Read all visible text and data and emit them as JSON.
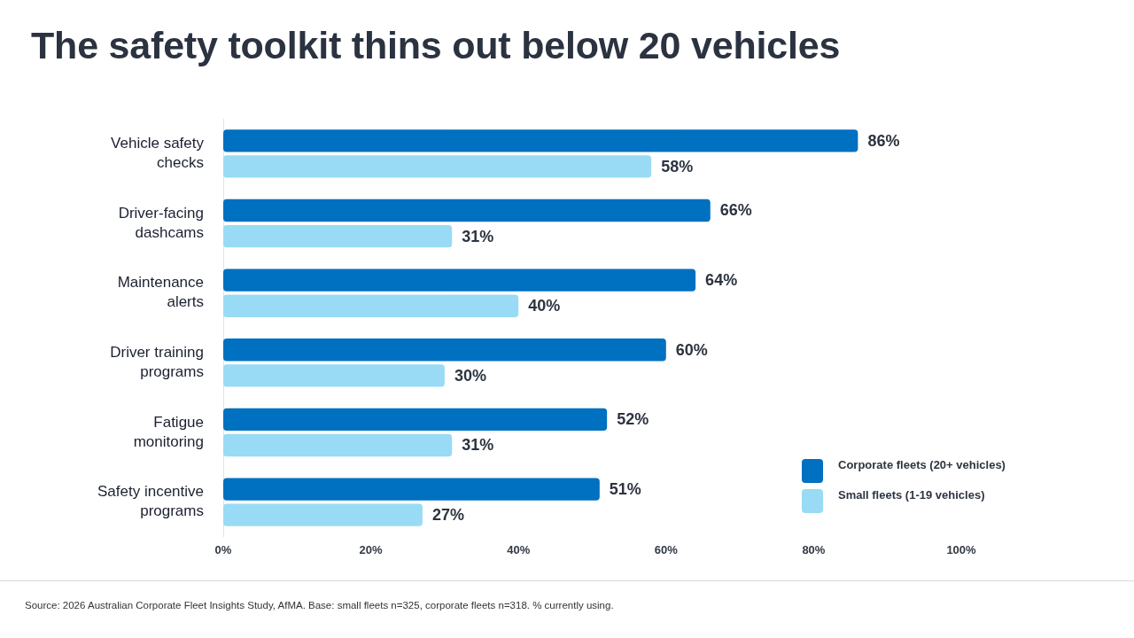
{
  "chart_data": {
    "type": "bar",
    "orientation": "horizontal",
    "title": "The safety toolkit thins out below 20 vehicles",
    "categories": [
      "Vehicle safety checks",
      "Driver-facing dashcams",
      "Maintenance alerts",
      "Driver training programs",
      "Fatigue monitoring",
      "Safety incentive programs"
    ],
    "series": [
      {
        "name": "Corporate fleets (20+ vehicles)",
        "color": "#0070c0",
        "values": [
          86,
          66,
          64,
          60,
          52,
          51
        ],
        "value_labels": [
          "86%",
          "66%",
          "64%",
          "60%",
          "52%",
          "51%"
        ]
      },
      {
        "name": "Small fleets (1-19 vehicles)",
        "color": "#99dbf5",
        "values": [
          58,
          31,
          40,
          30,
          31,
          27
        ],
        "value_labels": [
          "58%",
          "31%",
          "40%",
          "30%",
          "31%",
          "27%"
        ]
      }
    ],
    "xlim": [
      0,
      100
    ],
    "xticks": [
      {
        "value": 0,
        "label": "0%"
      },
      {
        "value": 20,
        "label": "20%"
      },
      {
        "value": 40,
        "label": "40%"
      },
      {
        "value": 60,
        "label": "60%"
      },
      {
        "value": 80,
        "label": "80%"
      },
      {
        "value": 100,
        "label": "100%"
      }
    ],
    "grid": false,
    "legend": "bottom right",
    "annotations": [
      "Source: 2026 Australian Corporate Fleet Insights Study, AfMA. Base: small fleets n=325, corporate fleets n=318. % currently using."
    ]
  }
}
